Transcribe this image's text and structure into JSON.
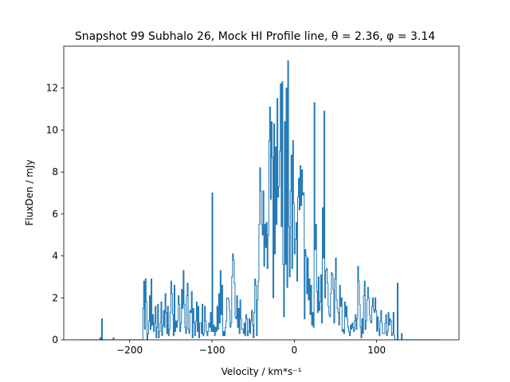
{
  "chart_data": {
    "type": "line",
    "step": true,
    "title": "Snapshot 99 Subhalo 26, Mock HI Profile line, θ = 2.36, φ = 3.14",
    "xlabel": "Velocity / km*s⁻¹",
    "ylabel": "FluxDen / mJy",
    "xlim": [
      -280,
      200
    ],
    "ylim": [
      0,
      14
    ],
    "xticks": [
      -200,
      -100,
      0,
      100
    ],
    "yticks": [
      0,
      2,
      4,
      6,
      8,
      10,
      12
    ],
    "grid": false,
    "line_color": "#1f77b4",
    "series": [
      {
        "x": [
          -262,
          -236,
          -235,
          -234,
          -233,
          -232,
          -231,
          -220,
          -219,
          -218,
          -217,
          -216,
          -215,
          -184,
          -183,
          -182,
          -181,
          -180,
          -179,
          -178,
          -177,
          -176,
          -175,
          -174,
          -173,
          -172,
          -171,
          -170,
          -169,
          -168,
          -167,
          -166,
          -165,
          -164,
          -163,
          -162,
          -161,
          -160,
          -159,
          -158,
          -157,
          -156,
          -155,
          -154,
          -153,
          -152,
          -151,
          -150,
          -149,
          -148,
          -147,
          -146,
          -145,
          -144,
          -143,
          -142,
          -141,
          -140,
          -139,
          -138,
          -137,
          -136,
          -135,
          -134,
          -133,
          -132,
          -131,
          -130,
          -129,
          -128,
          -127,
          -126,
          -125,
          -124,
          -123,
          -122,
          -121,
          -120,
          -119,
          -118,
          -117,
          -116,
          -115,
          -114,
          -113,
          -112,
          -111,
          -110,
          -109,
          -108,
          -107,
          -106,
          -105,
          -104,
          -103,
          -102,
          -101,
          -100,
          -99,
          -98,
          -97,
          -96,
          -95,
          -94,
          -93,
          -92,
          -91,
          -90,
          -89,
          -88,
          -87,
          -86,
          -85,
          -84,
          -83,
          -82,
          -81,
          -80,
          -79,
          -78,
          -77,
          -76,
          -75,
          -74,
          -73,
          -72,
          -71,
          -70,
          -69,
          -68,
          -67,
          -66,
          -65,
          -64,
          -63,
          -62,
          -61,
          -60,
          -59,
          -58,
          -57,
          -56,
          -55,
          -54,
          -53,
          -52,
          -51,
          -50,
          -49,
          -48,
          -47,
          -46,
          -45,
          -44,
          -43,
          -42,
          -41,
          -40,
          -39,
          -38,
          -37,
          -36,
          -35,
          -34,
          -33,
          -32,
          -31,
          -30,
          -29,
          -28,
          -27,
          -26,
          -25,
          -24,
          -23,
          -22,
          -21,
          -20,
          -19,
          -18,
          -17,
          -16,
          -15,
          -14,
          -13,
          -12,
          -11,
          -10,
          -9,
          -8,
          -7,
          -6,
          -5,
          -4,
          -3,
          -2,
          -1,
          0,
          1,
          2,
          3,
          4,
          5,
          6,
          7,
          8,
          9,
          10,
          11,
          12,
          13,
          14,
          15,
          16,
          17,
          18,
          19,
          20,
          21,
          22,
          23,
          24,
          25,
          26,
          27,
          28,
          29,
          30,
          31,
          32,
          33,
          34,
          35,
          36,
          37,
          38,
          39,
          40,
          41,
          42,
          43,
          44,
          45,
          46,
          47,
          48,
          49,
          50,
          51,
          52,
          53,
          54,
          55,
          56,
          57,
          58,
          59,
          60,
          61,
          62,
          63,
          64,
          65,
          66,
          67,
          68,
          69,
          70,
          71,
          72,
          73,
          74,
          75,
          76,
          77,
          78,
          79,
          80,
          81,
          82,
          83,
          84,
          85,
          86,
          87,
          88,
          89,
          90,
          91,
          92,
          93,
          94,
          95,
          96,
          97,
          98,
          99,
          100,
          101,
          102,
          103,
          104,
          105,
          106,
          107,
          108,
          109,
          110,
          111,
          112,
          113,
          114,
          115,
          116,
          117,
          118,
          119,
          120,
          121,
          122,
          123,
          124,
          125,
          126,
          127,
          128,
          129,
          130,
          131,
          178
        ],
        "y": [
          0,
          0.1,
          0,
          1.0,
          0,
          0,
          0,
          0.1,
          0,
          0,
          0,
          0,
          0,
          1.5,
          2.8,
          0.5,
          2.9,
          1.8,
          0,
          0.3,
          0.9,
          2.1,
          0.5,
          2.9,
          0.7,
          1.2,
          0.4,
          0.8,
          1.6,
          0.1,
          0.6,
          1.7,
          0.1,
          0.4,
          0.8,
          1.8,
          0.2,
          0.7,
          1.4,
          0.6,
          2.2,
          1.3,
          0.3,
          1.6,
          0.2,
          0.5,
          1.3,
          2.8,
          2.2,
          1.2,
          0.2,
          2.6,
          0.4,
          0.9,
          0.6,
          0.9,
          2.1,
          1.7,
          0.4,
          0.8,
          2.4,
          1.5,
          3.3,
          1.7,
          0.6,
          0.3,
          2.1,
          2.7,
          0.5,
          0.3,
          1.4,
          1.3,
          2.3,
          0.1,
          1.5,
          0.8,
          0.2,
          0.9,
          1.8,
          0.4,
          1.6,
          0.1,
          0.8,
          0.8,
          0.3,
          1.7,
          0.2,
          0.3,
          1.6,
          0.9,
          0.4,
          0.2,
          0.4,
          0.8,
          0.6,
          1.3,
          0.4,
          7.0,
          0.4,
          0.7,
          0.2,
          0.6,
          0.4,
          1.6,
          0.5,
          2.2,
          0.8,
          3.3,
          1.2,
          2.6,
          0.2,
          0.4,
          0.2,
          0.6,
          0.9,
          2.0,
          2.0,
          1.9,
          1.4,
          0.6,
          0.8,
          3.0,
          4.1,
          3.8,
          2.7,
          1.1,
          1.0,
          2.1,
          0.6,
          1.5,
          0.3,
          1.9,
          1.0,
          0.5,
          0.5,
          0.3,
          0.8,
          0.2,
          1.2,
          1.0,
          0.2,
          0.4,
          1.0,
          0.3,
          0.9,
          1.4,
          0.7,
          0.1,
          1.3,
          2.9,
          2.6,
          0.2,
          1.9,
          2.8,
          5.5,
          8.2,
          7.1,
          5.5,
          5.0,
          7.1,
          3.5,
          5.5,
          4.4,
          5.6,
          3.4,
          5.0,
          9.5,
          11.1,
          6.7,
          10.4,
          8.7,
          2.0,
          10.3,
          4.1,
          9.2,
          5.5,
          11.5,
          6.8,
          7.3,
          9.0,
          12.2,
          5.4,
          12.3,
          3.6,
          1.1,
          10.4,
          3.6,
          12.0,
          2.5,
          13.3,
          5.4,
          3.0,
          7.1,
          8.8,
          3.4,
          9.5,
          6.5,
          4.1,
          4.8,
          5.6,
          2.8,
          6.8,
          7.7,
          6.2,
          8.3,
          6.4,
          8.1,
          6.9,
          7.0,
          1.0,
          4.3,
          4.0,
          2.2,
          3.9,
          1.9,
          2.9,
          1.2,
          2.6,
          0.7,
          1.3,
          0.6,
          11.3,
          4.3,
          5.5,
          2.3,
          1.3,
          3.0,
          1.4,
          1.8,
          3.1,
          0.8,
          6.3,
          3.9,
          10.9,
          2.0,
          3.3,
          3.4,
          2.7,
          1.6,
          1.2,
          1.1,
          2.2,
          3.2,
          3.1,
          2.4,
          0.8,
          2.9,
          3.9,
          1.9,
          1.5,
          1.3,
          0.7,
          2.6,
          1.6,
          2.0,
          0.4,
          0.5,
          0.3,
          1.8,
          1.1,
          1.6,
          1.0,
          0.6,
          0.4,
          0.2,
          0.7,
          0.5,
          0.8,
          0.6,
          0.4,
          0.9,
          1.2,
          0.5,
          1.0,
          3.5,
          2.8,
          1.7,
          0.6,
          0.1,
          1.0,
          0.3,
          2.1,
          2.8,
          0.5,
          0.9,
          1.9,
          2.5,
          2.0,
          1.2,
          0.9,
          0.8,
          1.6,
          2.0,
          1.4,
          1.3,
          2.0,
          1.4,
          0.4,
          1.1,
          0.5,
          0.2,
          0.9,
          1.4,
          0.8,
          0.3,
          0.3,
          0.3,
          0.8,
          1.2,
          0.2,
          0.4,
          1.3,
          0.7,
          1.0,
          0.9,
          0.2,
          0.3,
          1.3,
          0.2,
          0.0,
          0.0,
          0.0,
          2.7,
          0,
          0,
          0,
          0,
          0.3,
          0,
          0
        ]
      }
    ]
  }
}
